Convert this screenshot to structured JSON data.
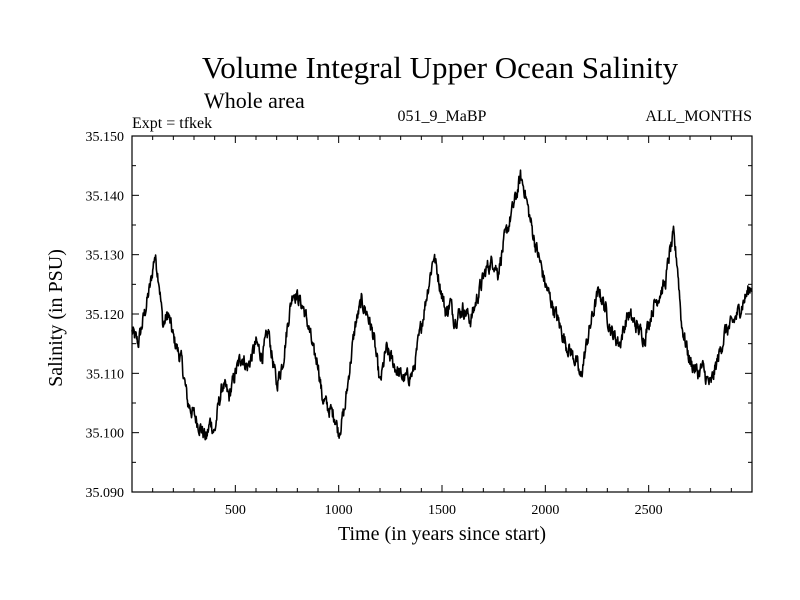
{
  "header": {
    "title": "Volume Integral Upper Ocean Salinity",
    "subtitle": "Whole area",
    "expt": "Expt = tfkek",
    "run_id": "051_9_MaBP",
    "months": "ALL_MONTHS"
  },
  "chart_data": {
    "type": "line",
    "xlabel": "Time (in years since start)",
    "ylabel": "Salinity (in PSU)",
    "xlim": [
      0,
      3000
    ],
    "ylim": [
      35.09,
      35.15
    ],
    "xticks": [
      500,
      1000,
      1500,
      2000,
      2500
    ],
    "yticks": [
      "35.090",
      "35.100",
      "35.110",
      "35.120",
      "35.130",
      "35.140",
      "35.150"
    ],
    "grid": false,
    "series": [
      {
        "values_note": "",
        "x": [
          0,
          30,
          60,
          90,
          110,
          130,
          150,
          175,
          200,
          240,
          270,
          300,
          330,
          360,
          380,
          400,
          420,
          440,
          470,
          500,
          530,
          560,
          600,
          630,
          660,
          700,
          730,
          760,
          780,
          800,
          830,
          860,
          880,
          900,
          920,
          950,
          980,
          1000,
          1030,
          1050,
          1080,
          1110,
          1140,
          1170,
          1200,
          1230,
          1260,
          1290,
          1320,
          1360,
          1400,
          1440,
          1460,
          1490,
          1520,
          1540,
          1560,
          1600,
          1640,
          1680,
          1720,
          1750,
          1770,
          1800,
          1830,
          1860,
          1880,
          1900,
          1920,
          1950,
          1980,
          2000,
          2050,
          2100,
          2150,
          2170,
          2200,
          2230,
          2260,
          2290,
          2320,
          2360,
          2400,
          2440,
          2480,
          2520,
          2560,
          2580,
          2600,
          2620,
          2640,
          2660,
          2700,
          2740,
          2760,
          2780,
          2800,
          2840,
          2870,
          2900,
          2930,
          2970,
          3000
        ],
        "values": [
          35.117,
          35.115,
          35.12,
          35.125,
          35.13,
          35.126,
          35.118,
          35.12,
          35.116,
          35.112,
          35.105,
          35.103,
          35.101,
          35.099,
          35.102,
          35.1,
          35.105,
          35.108,
          35.106,
          35.11,
          35.113,
          35.111,
          35.115,
          35.113,
          35.117,
          35.108,
          35.112,
          35.12,
          35.124,
          35.123,
          35.121,
          35.117,
          35.113,
          35.112,
          35.106,
          35.104,
          35.103,
          35.1,
          35.104,
          35.11,
          35.118,
          35.122,
          35.12,
          35.116,
          35.108,
          35.114,
          35.112,
          35.11,
          35.109,
          35.11,
          35.118,
          35.126,
          35.13,
          35.125,
          35.12,
          35.122,
          35.119,
          35.121,
          35.119,
          35.124,
          35.128,
          35.129,
          35.127,
          35.132,
          35.136,
          35.14,
          35.143,
          35.141,
          35.137,
          35.132,
          35.128,
          35.125,
          35.12,
          35.115,
          35.112,
          35.109,
          35.115,
          35.12,
          35.124,
          35.121,
          35.117,
          35.115,
          35.12,
          35.118,
          35.116,
          35.121,
          35.124,
          35.125,
          35.13,
          35.133,
          35.128,
          35.118,
          35.112,
          35.11,
          35.111,
          35.109,
          35.108,
          35.113,
          35.117,
          35.118,
          35.12,
          35.123,
          35.125
        ]
      }
    ]
  }
}
